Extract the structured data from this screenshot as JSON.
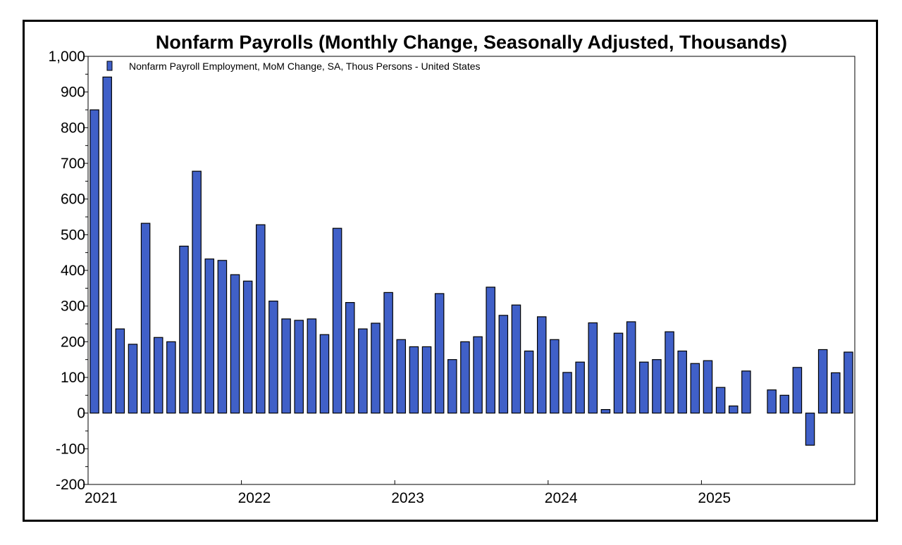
{
  "chart_data": {
    "type": "bar",
    "title": "Nonfarm Payrolls (Monthly Change, Seasonally Adjusted, Thousands)",
    "xlabel": "",
    "ylabel": "",
    "ylim": [
      -200,
      1000
    ],
    "y_ticks": [
      -200,
      -100,
      0,
      100,
      200,
      300,
      400,
      500,
      600,
      700,
      800,
      900,
      1000
    ],
    "y_tick_labels": [
      "-200",
      "-100",
      "0",
      "100",
      "200",
      "300",
      "400",
      "500",
      "600",
      "700",
      "800",
      "900",
      "1,000"
    ],
    "x_tick_labels": [
      {
        "label": "2021",
        "month_index": 0
      },
      {
        "label": "2022",
        "month_index": 12
      },
      {
        "label": "2023",
        "month_index": 24
      },
      {
        "label": "2024",
        "month_index": 36
      },
      {
        "label": "2025",
        "month_index": 48
      }
    ],
    "grid": false,
    "legend": "top-left",
    "colors": {
      "bar_fill": "#4060c8",
      "bar_stroke": "#000000"
    },
    "series": [
      {
        "name": "Nonfarm Payroll Employment, MoM Change, SA,  Thous Persons - United States",
        "start": "2021-01",
        "values": [
          850,
          942,
          236,
          193,
          532,
          212,
          200,
          468,
          678,
          432,
          428,
          388,
          370,
          528,
          314,
          264,
          260,
          264,
          220,
          518,
          310,
          236,
          252,
          338,
          206,
          186,
          186,
          335,
          150,
          200,
          214,
          353,
          274,
          303,
          174,
          270,
          206,
          114,
          143,
          253,
          10,
          224,
          256,
          143,
          150,
          228,
          174,
          139,
          147,
          72,
          20,
          118,
          null,
          65,
          50,
          128,
          -90,
          178,
          113,
          171
        ]
      }
    ]
  }
}
